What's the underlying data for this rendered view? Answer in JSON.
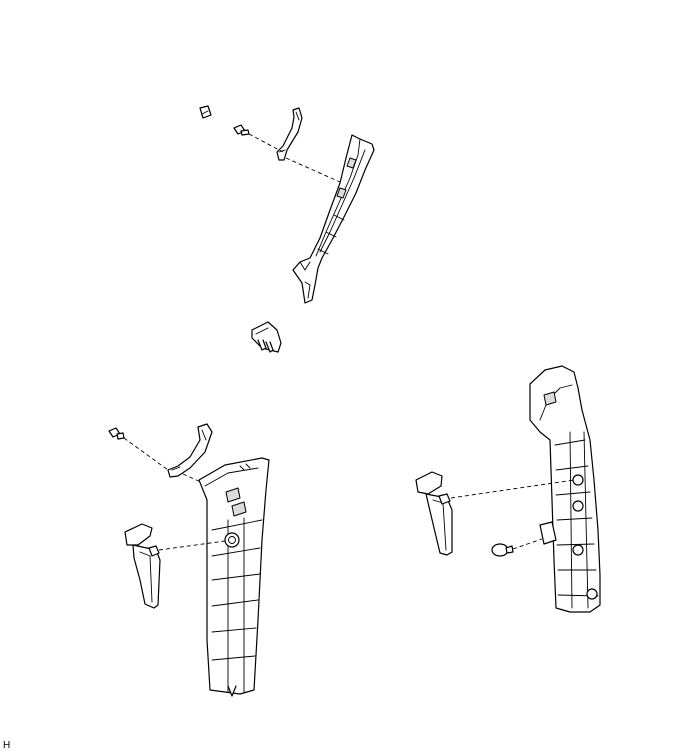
{
  "figure": {
    "doc_code": "H"
  }
}
